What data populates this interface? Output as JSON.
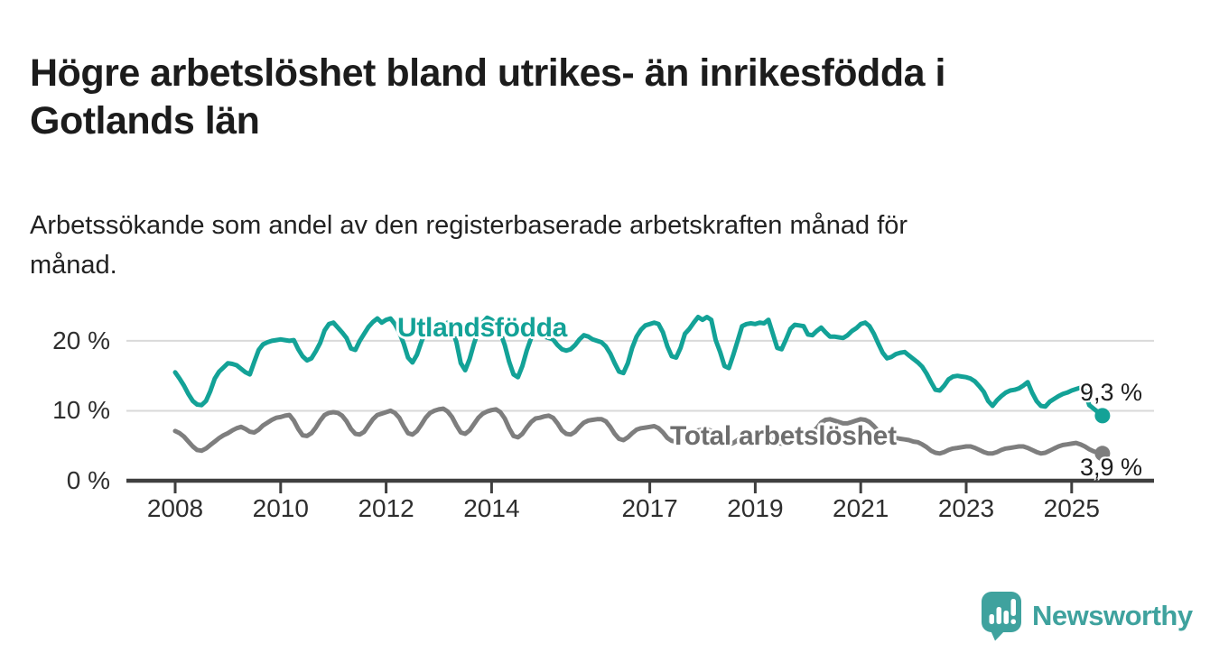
{
  "header": {
    "title": "Högre arbetslöshet bland utrikes- än inrikesfödda i\nGotlands län",
    "subtitle": "Arbetssökande som andel av den registerbaserade arbetskraften månad för\nmånad."
  },
  "footer": {
    "brand": "Newsworthy",
    "brand_color": "#3fa29e",
    "logo_icon": "speech-bubble-bar-chart"
  },
  "chart_data": {
    "type": "line",
    "title": "Högre arbetslöshet bland utrikes- än inrikesfödda i Gotlands län",
    "xlabel": "",
    "ylabel": "",
    "unit": "%",
    "x_interval": "monthly",
    "x_start": "2008-01",
    "x_end": "2025-08",
    "ylim": [
      0,
      24.5
    ],
    "grid": "horizontal",
    "gridline_color": "#d9d9d9",
    "axis_color": "#3f3f3f",
    "tick_label_color": "#2e2e2e",
    "yticks": [
      {
        "label": "20 %",
        "value": 20
      },
      {
        "label": "10 %",
        "value": 10
      },
      {
        "label": "0 %",
        "value": 0
      }
    ],
    "xticks": [
      {
        "label": "2008",
        "year": 2008
      },
      {
        "label": "2010",
        "year": 2010
      },
      {
        "label": "2012",
        "year": 2012
      },
      {
        "label": "2014",
        "year": 2014
      },
      {
        "label": "2017",
        "year": 2017
      },
      {
        "label": "2019",
        "year": 2019
      },
      {
        "label": "2021",
        "year": 2021
      },
      {
        "label": "2023",
        "year": 2023
      },
      {
        "label": "2025",
        "year": 2025
      }
    ],
    "series": [
      {
        "name": "Utlandsfödda",
        "color": "#13a297",
        "label_color": "#13a297",
        "end_label": "9,3 %",
        "end_value": 9.3,
        "values": [
          15.5,
          14.6,
          13.6,
          12.4,
          11.4,
          10.9,
          10.8,
          11.4,
          12.8,
          14.6,
          15.6,
          16.2,
          16.8,
          16.7,
          16.5,
          16.0,
          15.5,
          15.2,
          17.0,
          18.7,
          19.5,
          19.8,
          20.0,
          20.1,
          20.2,
          20.1,
          20.0,
          20.1,
          18.8,
          17.8,
          17.2,
          17.5,
          18.5,
          19.7,
          21.5,
          22.4,
          22.6,
          21.9,
          21.2,
          20.4,
          18.9,
          18.7,
          20.0,
          21.0,
          22.0,
          22.7,
          23.2,
          22.6,
          23.0,
          23.2,
          22.4,
          21.2,
          19.6,
          17.6,
          16.9,
          18.0,
          19.8,
          21.4,
          22.6,
          22.0,
          21.5,
          22.0,
          22.6,
          21.6,
          19.8,
          16.8,
          15.8,
          17.4,
          19.6,
          21.4,
          22.6,
          23.3,
          23.0,
          22.4,
          21.2,
          19.4,
          17.0,
          15.2,
          14.8,
          16.4,
          18.6,
          20.4,
          21.0,
          20.8,
          20.6,
          20.4,
          20.2,
          19.4,
          18.8,
          18.6,
          18.8,
          19.4,
          20.2,
          20.8,
          20.6,
          20.2,
          20.0,
          19.8,
          19.2,
          18.2,
          16.8,
          15.6,
          15.4,
          16.8,
          19.0,
          20.6,
          21.6,
          22.2,
          22.4,
          22.6,
          22.4,
          21.2,
          19.2,
          17.8,
          17.6,
          19.0,
          21.0,
          21.7,
          22.6,
          23.4,
          23.0,
          23.4,
          23.0,
          20.1,
          18.4,
          16.4,
          16.1,
          18.0,
          20.0,
          22.1,
          22.4,
          22.5,
          22.4,
          22.6,
          22.5,
          23.0,
          21.0,
          19.0,
          18.8,
          20.2,
          21.7,
          22.3,
          22.2,
          22.1,
          20.9,
          20.8,
          21.4,
          21.9,
          21.2,
          20.6,
          20.6,
          20.5,
          20.4,
          20.8,
          21.4,
          21.8,
          22.4,
          22.6,
          22.1,
          21.0,
          19.6,
          18.3,
          17.5,
          17.7,
          18.1,
          18.3,
          18.4,
          17.9,
          17.4,
          16.9,
          16.3,
          15.3,
          14.1,
          13.0,
          12.9,
          13.6,
          14.5,
          14.9,
          15.0,
          14.9,
          14.8,
          14.6,
          14.2,
          13.5,
          12.7,
          11.4,
          10.7,
          11.5,
          12.1,
          12.6,
          12.9,
          13.0,
          13.2,
          13.6,
          14.1,
          12.6,
          11.4,
          10.7,
          10.6,
          11.3,
          11.7,
          12.1,
          12.4,
          12.6,
          12.9,
          13.1,
          13.3,
          12.8,
          10.8,
          10.3,
          9.8,
          9.3
        ]
      },
      {
        "name": "Total arbetslöshet",
        "color": "#7e7e7e",
        "label_color": "#6e6e6e",
        "end_label": "3,9 %",
        "end_value": 3.9,
        "values": [
          7.1,
          6.8,
          6.3,
          5.6,
          4.9,
          4.4,
          4.3,
          4.6,
          5.1,
          5.6,
          6.1,
          6.5,
          6.8,
          7.2,
          7.5,
          7.7,
          7.4,
          7.0,
          6.9,
          7.3,
          7.9,
          8.3,
          8.7,
          9.0,
          9.1,
          9.3,
          9.4,
          8.6,
          7.4,
          6.5,
          6.4,
          6.8,
          7.6,
          8.6,
          9.4,
          9.7,
          9.8,
          9.7,
          9.3,
          8.5,
          7.4,
          6.7,
          6.6,
          7.0,
          7.9,
          8.8,
          9.4,
          9.6,
          9.8,
          10.0,
          9.7,
          9.0,
          7.8,
          6.8,
          6.6,
          7.1,
          8.0,
          9.0,
          9.7,
          10.0,
          10.2,
          10.3,
          9.9,
          9.1,
          7.9,
          6.9,
          6.7,
          7.2,
          8.1,
          9.0,
          9.6,
          9.9,
          10.1,
          10.2,
          9.8,
          8.9,
          7.5,
          6.4,
          6.2,
          6.7,
          7.6,
          8.4,
          8.9,
          9.0,
          9.2,
          9.3,
          9.0,
          8.2,
          7.2,
          6.7,
          6.6,
          7.0,
          7.7,
          8.3,
          8.6,
          8.7,
          8.8,
          8.8,
          8.5,
          7.7,
          6.7,
          6.0,
          5.8,
          6.2,
          6.8,
          7.3,
          7.5,
          7.6,
          7.7,
          7.8,
          7.5,
          6.9,
          6.1,
          5.7,
          5.6,
          5.9,
          6.3,
          6.7,
          7.0,
          7.2,
          7.3,
          7.4,
          7.1,
          6.4,
          5.7,
          5.3,
          5.2,
          5.4,
          5.8,
          6.2,
          6.5,
          6.7,
          6.9,
          7.0,
          6.8,
          6.3,
          5.7,
          5.4,
          5.3,
          5.6,
          6.0,
          6.4,
          6.6,
          6.8,
          7.0,
          7.0,
          7.5,
          8.3,
          8.7,
          8.8,
          8.6,
          8.4,
          8.2,
          8.2,
          8.4,
          8.6,
          8.8,
          8.7,
          8.4,
          7.8,
          7.1,
          6.6,
          6.3,
          6.2,
          6.1,
          6.0,
          5.9,
          5.8,
          5.6,
          5.5,
          5.2,
          4.8,
          4.3,
          4.0,
          3.9,
          4.1,
          4.4,
          4.6,
          4.7,
          4.8,
          4.9,
          4.9,
          4.7,
          4.4,
          4.1,
          3.9,
          3.9,
          4.1,
          4.4,
          4.6,
          4.7,
          4.8,
          4.9,
          4.9,
          4.7,
          4.4,
          4.1,
          3.9,
          4.0,
          4.3,
          4.6,
          4.9,
          5.1,
          5.2,
          5.3,
          5.4,
          5.2,
          4.9,
          4.5,
          4.2,
          4.0,
          3.9
        ]
      }
    ],
    "legend_position": "inline-labels"
  }
}
